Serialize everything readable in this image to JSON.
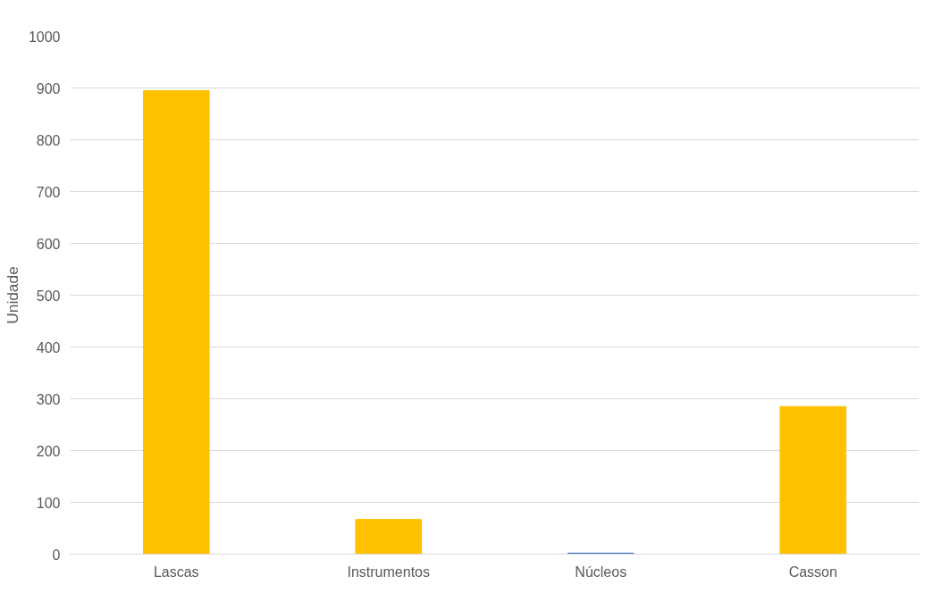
{
  "chart_data": {
    "type": "bar",
    "ylabel": "Unidade",
    "categories": [
      "Lascas",
      "Instrumentos",
      "Núcleos",
      "Casson"
    ],
    "values": [
      895,
      67,
      2,
      285
    ],
    "colors": [
      "#ffc000",
      "#ffc000",
      "#4472c4",
      "#ffc000"
    ],
    "ylim": [
      0,
      1000
    ],
    "yticks": [
      0,
      100,
      200,
      300,
      400,
      500,
      600,
      700,
      800,
      900,
      1000
    ],
    "grid": "y"
  }
}
